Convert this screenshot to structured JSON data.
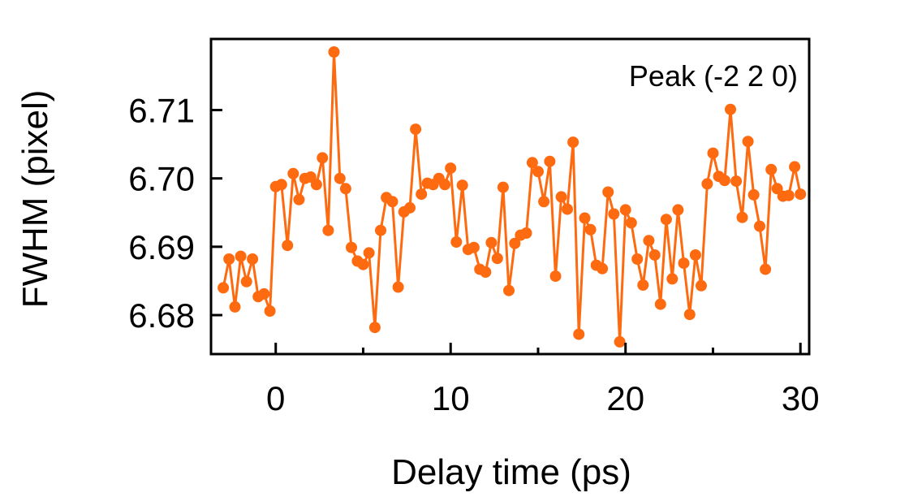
{
  "chart_data": {
    "type": "line",
    "title": "",
    "xlabel": "Delay time (ps)",
    "ylabel": "FWHM (pixel)",
    "annotation": "Peak (-2 2 0)",
    "xlim": [
      -3.7,
      30.5
    ],
    "ylim": [
      6.6743,
      6.7204
    ],
    "x_ticks": [
      0,
      10,
      20,
      30
    ],
    "x_tick_labels": [
      "0",
      "10",
      "20",
      "30"
    ],
    "x_minor_ticks": [
      5,
      15,
      25
    ],
    "y_ticks": [
      6.68,
      6.69,
      6.7,
      6.71
    ],
    "y_tick_labels": [
      "6.68",
      "6.69",
      "6.70",
      "6.71"
    ],
    "grid": false,
    "legend": "none",
    "colors": {
      "series": "#fd6a10",
      "axes": "#000000"
    },
    "series": [
      {
        "x": [
          -3.0,
          -2.67,
          -2.33,
          -2.0,
          -1.67,
          -1.33,
          -1.0,
          -0.67,
          -0.33,
          0.0,
          0.33,
          0.67,
          1.0,
          1.33,
          1.67,
          2.0,
          2.33,
          2.67,
          3.0,
          3.33,
          3.67,
          4.0,
          4.33,
          4.67,
          5.0,
          5.33,
          5.67,
          6.0,
          6.33,
          6.67,
          7.0,
          7.33,
          7.67,
          8.0,
          8.33,
          8.67,
          9.0,
          9.33,
          9.67,
          10.0,
          10.33,
          10.67,
          11.0,
          11.33,
          11.67,
          12.0,
          12.33,
          12.67,
          13.0,
          13.33,
          13.67,
          14.0,
          14.33,
          14.67,
          15.0,
          15.33,
          15.67,
          16.0,
          16.33,
          16.67,
          17.0,
          17.33,
          17.67,
          18.0,
          18.33,
          18.67,
          19.0,
          19.33,
          19.67,
          20.0,
          20.33,
          20.67,
          21.0,
          21.33,
          21.67,
          22.0,
          22.33,
          22.67,
          23.0,
          23.33,
          23.67,
          24.0,
          24.33,
          24.67,
          25.0,
          25.33,
          25.67,
          26.0,
          26.33,
          26.67,
          27.0,
          27.33,
          27.67,
          28.0,
          28.33,
          28.67,
          29.0,
          29.33,
          29.67,
          30.0
        ],
        "y": [
          6.684,
          6.6882,
          6.6812,
          6.6886,
          6.6849,
          6.6882,
          6.6827,
          6.6831,
          6.6806,
          6.6988,
          6.6991,
          6.6902,
          6.7007,
          6.6969,
          6.7,
          6.7002,
          6.6991,
          6.703,
          6.6924,
          6.7185,
          6.7,
          6.6985,
          6.6899,
          6.6879,
          6.6874,
          6.6891,
          6.6782,
          6.6924,
          6.6972,
          6.6966,
          6.6841,
          6.6951,
          6.6957,
          6.7072,
          6.6977,
          6.6993,
          6.6991,
          6.7,
          6.6991,
          6.7015,
          6.6907,
          6.699,
          6.6896,
          6.6899,
          6.6867,
          6.6863,
          6.6906,
          6.6883,
          6.6987,
          6.6836,
          6.6905,
          6.6917,
          6.692,
          6.7023,
          6.701,
          6.6966,
          6.7025,
          6.6857,
          6.6973,
          6.6955,
          6.7053,
          6.6772,
          6.6942,
          6.6925,
          6.6873,
          6.6868,
          6.698,
          6.6948,
          6.6761,
          6.6954,
          6.6935,
          6.6882,
          6.6844,
          6.6909,
          6.6888,
          6.6816,
          6.694,
          6.6853,
          6.6954,
          6.6876,
          6.6801,
          6.6888,
          6.6843,
          6.6992,
          6.7037,
          6.7003,
          6.6997,
          6.7101,
          6.6996,
          6.6943,
          6.7054,
          6.6976,
          6.693,
          6.6867,
          6.7013,
          6.6985,
          6.6974,
          6.6975,
          6.7017,
          6.6977
        ]
      }
    ]
  }
}
